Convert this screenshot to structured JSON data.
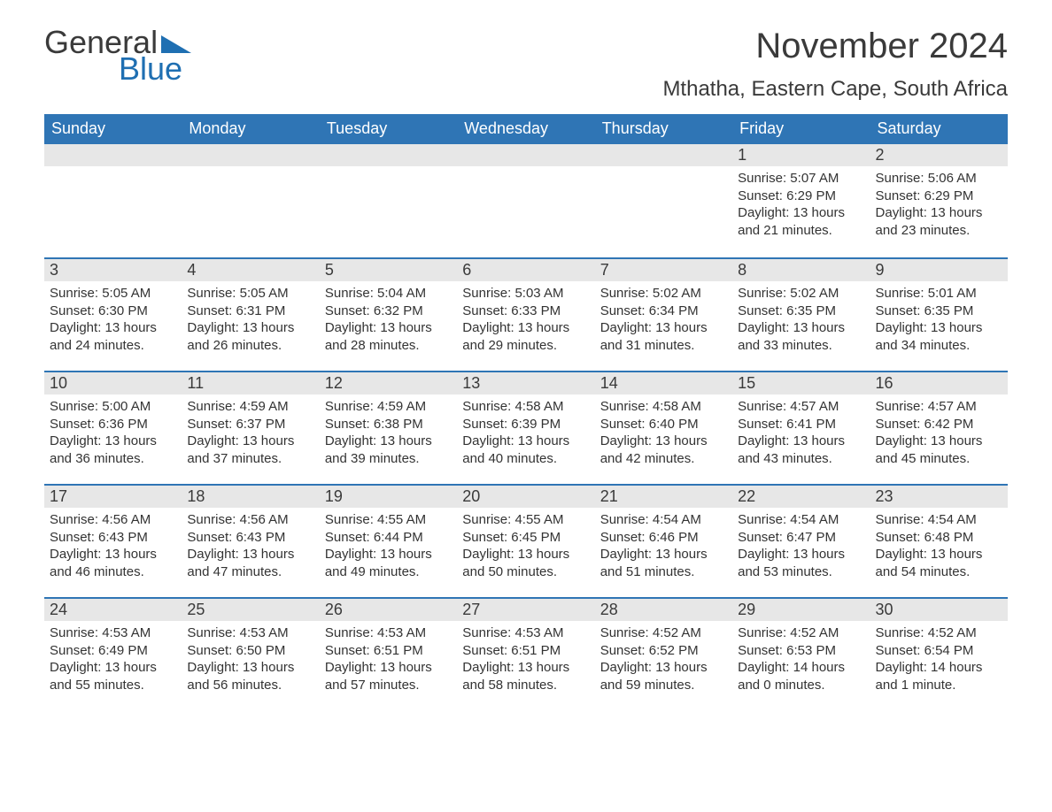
{
  "brand": {
    "word1": "General",
    "word2": "Blue"
  },
  "colors": {
    "header_bg": "#2f75b5",
    "header_text": "#ffffff",
    "daynum_bg": "#e7e7e7",
    "text": "#333333",
    "accent": "#1f6fb2",
    "row_border": "#2f75b5",
    "page_bg": "#ffffff"
  },
  "fonts": {
    "title_size_pt": 30,
    "location_size_pt": 18,
    "header_size_pt": 14,
    "daynum_size_pt": 14,
    "body_size_pt": 11
  },
  "title": "November 2024",
  "location": "Mthatha, Eastern Cape, South Africa",
  "weekdays": [
    "Sunday",
    "Monday",
    "Tuesday",
    "Wednesday",
    "Thursday",
    "Friday",
    "Saturday"
  ],
  "weeks": [
    [
      {
        "n": "",
        "sr": "",
        "ss": "",
        "dl": ""
      },
      {
        "n": "",
        "sr": "",
        "ss": "",
        "dl": ""
      },
      {
        "n": "",
        "sr": "",
        "ss": "",
        "dl": ""
      },
      {
        "n": "",
        "sr": "",
        "ss": "",
        "dl": ""
      },
      {
        "n": "",
        "sr": "",
        "ss": "",
        "dl": ""
      },
      {
        "n": "1",
        "sr": "Sunrise: 5:07 AM",
        "ss": "Sunset: 6:29 PM",
        "dl": "Daylight: 13 hours and 21 minutes."
      },
      {
        "n": "2",
        "sr": "Sunrise: 5:06 AM",
        "ss": "Sunset: 6:29 PM",
        "dl": "Daylight: 13 hours and 23 minutes."
      }
    ],
    [
      {
        "n": "3",
        "sr": "Sunrise: 5:05 AM",
        "ss": "Sunset: 6:30 PM",
        "dl": "Daylight: 13 hours and 24 minutes."
      },
      {
        "n": "4",
        "sr": "Sunrise: 5:05 AM",
        "ss": "Sunset: 6:31 PM",
        "dl": "Daylight: 13 hours and 26 minutes."
      },
      {
        "n": "5",
        "sr": "Sunrise: 5:04 AM",
        "ss": "Sunset: 6:32 PM",
        "dl": "Daylight: 13 hours and 28 minutes."
      },
      {
        "n": "6",
        "sr": "Sunrise: 5:03 AM",
        "ss": "Sunset: 6:33 PM",
        "dl": "Daylight: 13 hours and 29 minutes."
      },
      {
        "n": "7",
        "sr": "Sunrise: 5:02 AM",
        "ss": "Sunset: 6:34 PM",
        "dl": "Daylight: 13 hours and 31 minutes."
      },
      {
        "n": "8",
        "sr": "Sunrise: 5:02 AM",
        "ss": "Sunset: 6:35 PM",
        "dl": "Daylight: 13 hours and 33 minutes."
      },
      {
        "n": "9",
        "sr": "Sunrise: 5:01 AM",
        "ss": "Sunset: 6:35 PM",
        "dl": "Daylight: 13 hours and 34 minutes."
      }
    ],
    [
      {
        "n": "10",
        "sr": "Sunrise: 5:00 AM",
        "ss": "Sunset: 6:36 PM",
        "dl": "Daylight: 13 hours and 36 minutes."
      },
      {
        "n": "11",
        "sr": "Sunrise: 4:59 AM",
        "ss": "Sunset: 6:37 PM",
        "dl": "Daylight: 13 hours and 37 minutes."
      },
      {
        "n": "12",
        "sr": "Sunrise: 4:59 AM",
        "ss": "Sunset: 6:38 PM",
        "dl": "Daylight: 13 hours and 39 minutes."
      },
      {
        "n": "13",
        "sr": "Sunrise: 4:58 AM",
        "ss": "Sunset: 6:39 PM",
        "dl": "Daylight: 13 hours and 40 minutes."
      },
      {
        "n": "14",
        "sr": "Sunrise: 4:58 AM",
        "ss": "Sunset: 6:40 PM",
        "dl": "Daylight: 13 hours and 42 minutes."
      },
      {
        "n": "15",
        "sr": "Sunrise: 4:57 AM",
        "ss": "Sunset: 6:41 PM",
        "dl": "Daylight: 13 hours and 43 minutes."
      },
      {
        "n": "16",
        "sr": "Sunrise: 4:57 AM",
        "ss": "Sunset: 6:42 PM",
        "dl": "Daylight: 13 hours and 45 minutes."
      }
    ],
    [
      {
        "n": "17",
        "sr": "Sunrise: 4:56 AM",
        "ss": "Sunset: 6:43 PM",
        "dl": "Daylight: 13 hours and 46 minutes."
      },
      {
        "n": "18",
        "sr": "Sunrise: 4:56 AM",
        "ss": "Sunset: 6:43 PM",
        "dl": "Daylight: 13 hours and 47 minutes."
      },
      {
        "n": "19",
        "sr": "Sunrise: 4:55 AM",
        "ss": "Sunset: 6:44 PM",
        "dl": "Daylight: 13 hours and 49 minutes."
      },
      {
        "n": "20",
        "sr": "Sunrise: 4:55 AM",
        "ss": "Sunset: 6:45 PM",
        "dl": "Daylight: 13 hours and 50 minutes."
      },
      {
        "n": "21",
        "sr": "Sunrise: 4:54 AM",
        "ss": "Sunset: 6:46 PM",
        "dl": "Daylight: 13 hours and 51 minutes."
      },
      {
        "n": "22",
        "sr": "Sunrise: 4:54 AM",
        "ss": "Sunset: 6:47 PM",
        "dl": "Daylight: 13 hours and 53 minutes."
      },
      {
        "n": "23",
        "sr": "Sunrise: 4:54 AM",
        "ss": "Sunset: 6:48 PM",
        "dl": "Daylight: 13 hours and 54 minutes."
      }
    ],
    [
      {
        "n": "24",
        "sr": "Sunrise: 4:53 AM",
        "ss": "Sunset: 6:49 PM",
        "dl": "Daylight: 13 hours and 55 minutes."
      },
      {
        "n": "25",
        "sr": "Sunrise: 4:53 AM",
        "ss": "Sunset: 6:50 PM",
        "dl": "Daylight: 13 hours and 56 minutes."
      },
      {
        "n": "26",
        "sr": "Sunrise: 4:53 AM",
        "ss": "Sunset: 6:51 PM",
        "dl": "Daylight: 13 hours and 57 minutes."
      },
      {
        "n": "27",
        "sr": "Sunrise: 4:53 AM",
        "ss": "Sunset: 6:51 PM",
        "dl": "Daylight: 13 hours and 58 minutes."
      },
      {
        "n": "28",
        "sr": "Sunrise: 4:52 AM",
        "ss": "Sunset: 6:52 PM",
        "dl": "Daylight: 13 hours and 59 minutes."
      },
      {
        "n": "29",
        "sr": "Sunrise: 4:52 AM",
        "ss": "Sunset: 6:53 PM",
        "dl": "Daylight: 14 hours and 0 minutes."
      },
      {
        "n": "30",
        "sr": "Sunrise: 4:52 AM",
        "ss": "Sunset: 6:54 PM",
        "dl": "Daylight: 14 hours and 1 minute."
      }
    ]
  ]
}
